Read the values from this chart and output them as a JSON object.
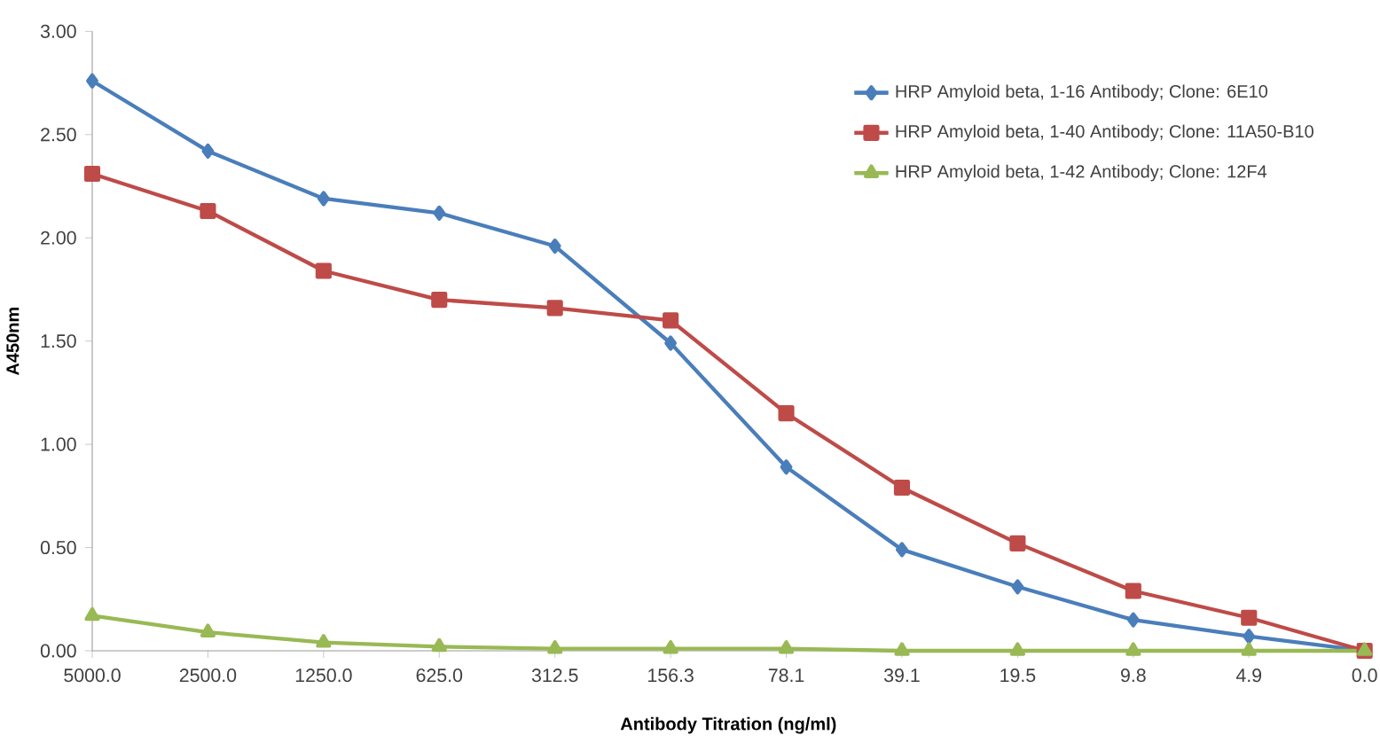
{
  "chart_data": {
    "type": "line",
    "xlabel": "Antibody Titration (ng/ml)",
    "ylabel": "A450nm",
    "categories": [
      "5000.0",
      "2500.0",
      "1250.0",
      "625.0",
      "312.5",
      "156.3",
      "78.1",
      "39.1",
      "19.5",
      "9.8",
      "4.9",
      "0.0"
    ],
    "ylim": [
      0,
      3
    ],
    "yticks": [
      {
        "value": 0,
        "label": "0.00"
      },
      {
        "value": 0.5,
        "label": "0.50"
      },
      {
        "value": 1,
        "label": "1.00"
      },
      {
        "value": 1.5,
        "label": "1.50"
      },
      {
        "value": 2,
        "label": "2.00"
      },
      {
        "value": 2.5,
        "label": "2.50"
      },
      {
        "value": 3,
        "label": "3.00"
      }
    ],
    "grid": false,
    "legend": "top right",
    "line_style": "solid",
    "series": [
      {
        "name": "HRP Amyloid beta, 1-16 Antibody; Clone: 6E10",
        "color": "#4a7ebb",
        "marker": "diamond",
        "values": [
          2.76,
          2.42,
          2.19,
          2.12,
          1.96,
          1.49,
          0.89,
          0.49,
          0.31,
          0.15,
          0.07,
          0.0
        ]
      },
      {
        "name": "HRP Amyloid beta, 1-40 Antibody; Clone: 11A50-B10",
        "color": "#be4b48",
        "marker": "square",
        "values": [
          2.31,
          2.13,
          1.84,
          1.7,
          1.66,
          1.6,
          1.15,
          0.79,
          0.52,
          0.29,
          0.16,
          0.0
        ]
      },
      {
        "name": "HRP Amyloid beta, 1-42 Antibody; Clone: 12F4",
        "color": "#98b954",
        "marker": "triangle",
        "values": [
          0.17,
          0.09,
          0.04,
          0.02,
          0.01,
          0.01,
          0.01,
          0.0,
          0.0,
          0.0,
          0.0,
          0.0
        ]
      }
    ]
  }
}
